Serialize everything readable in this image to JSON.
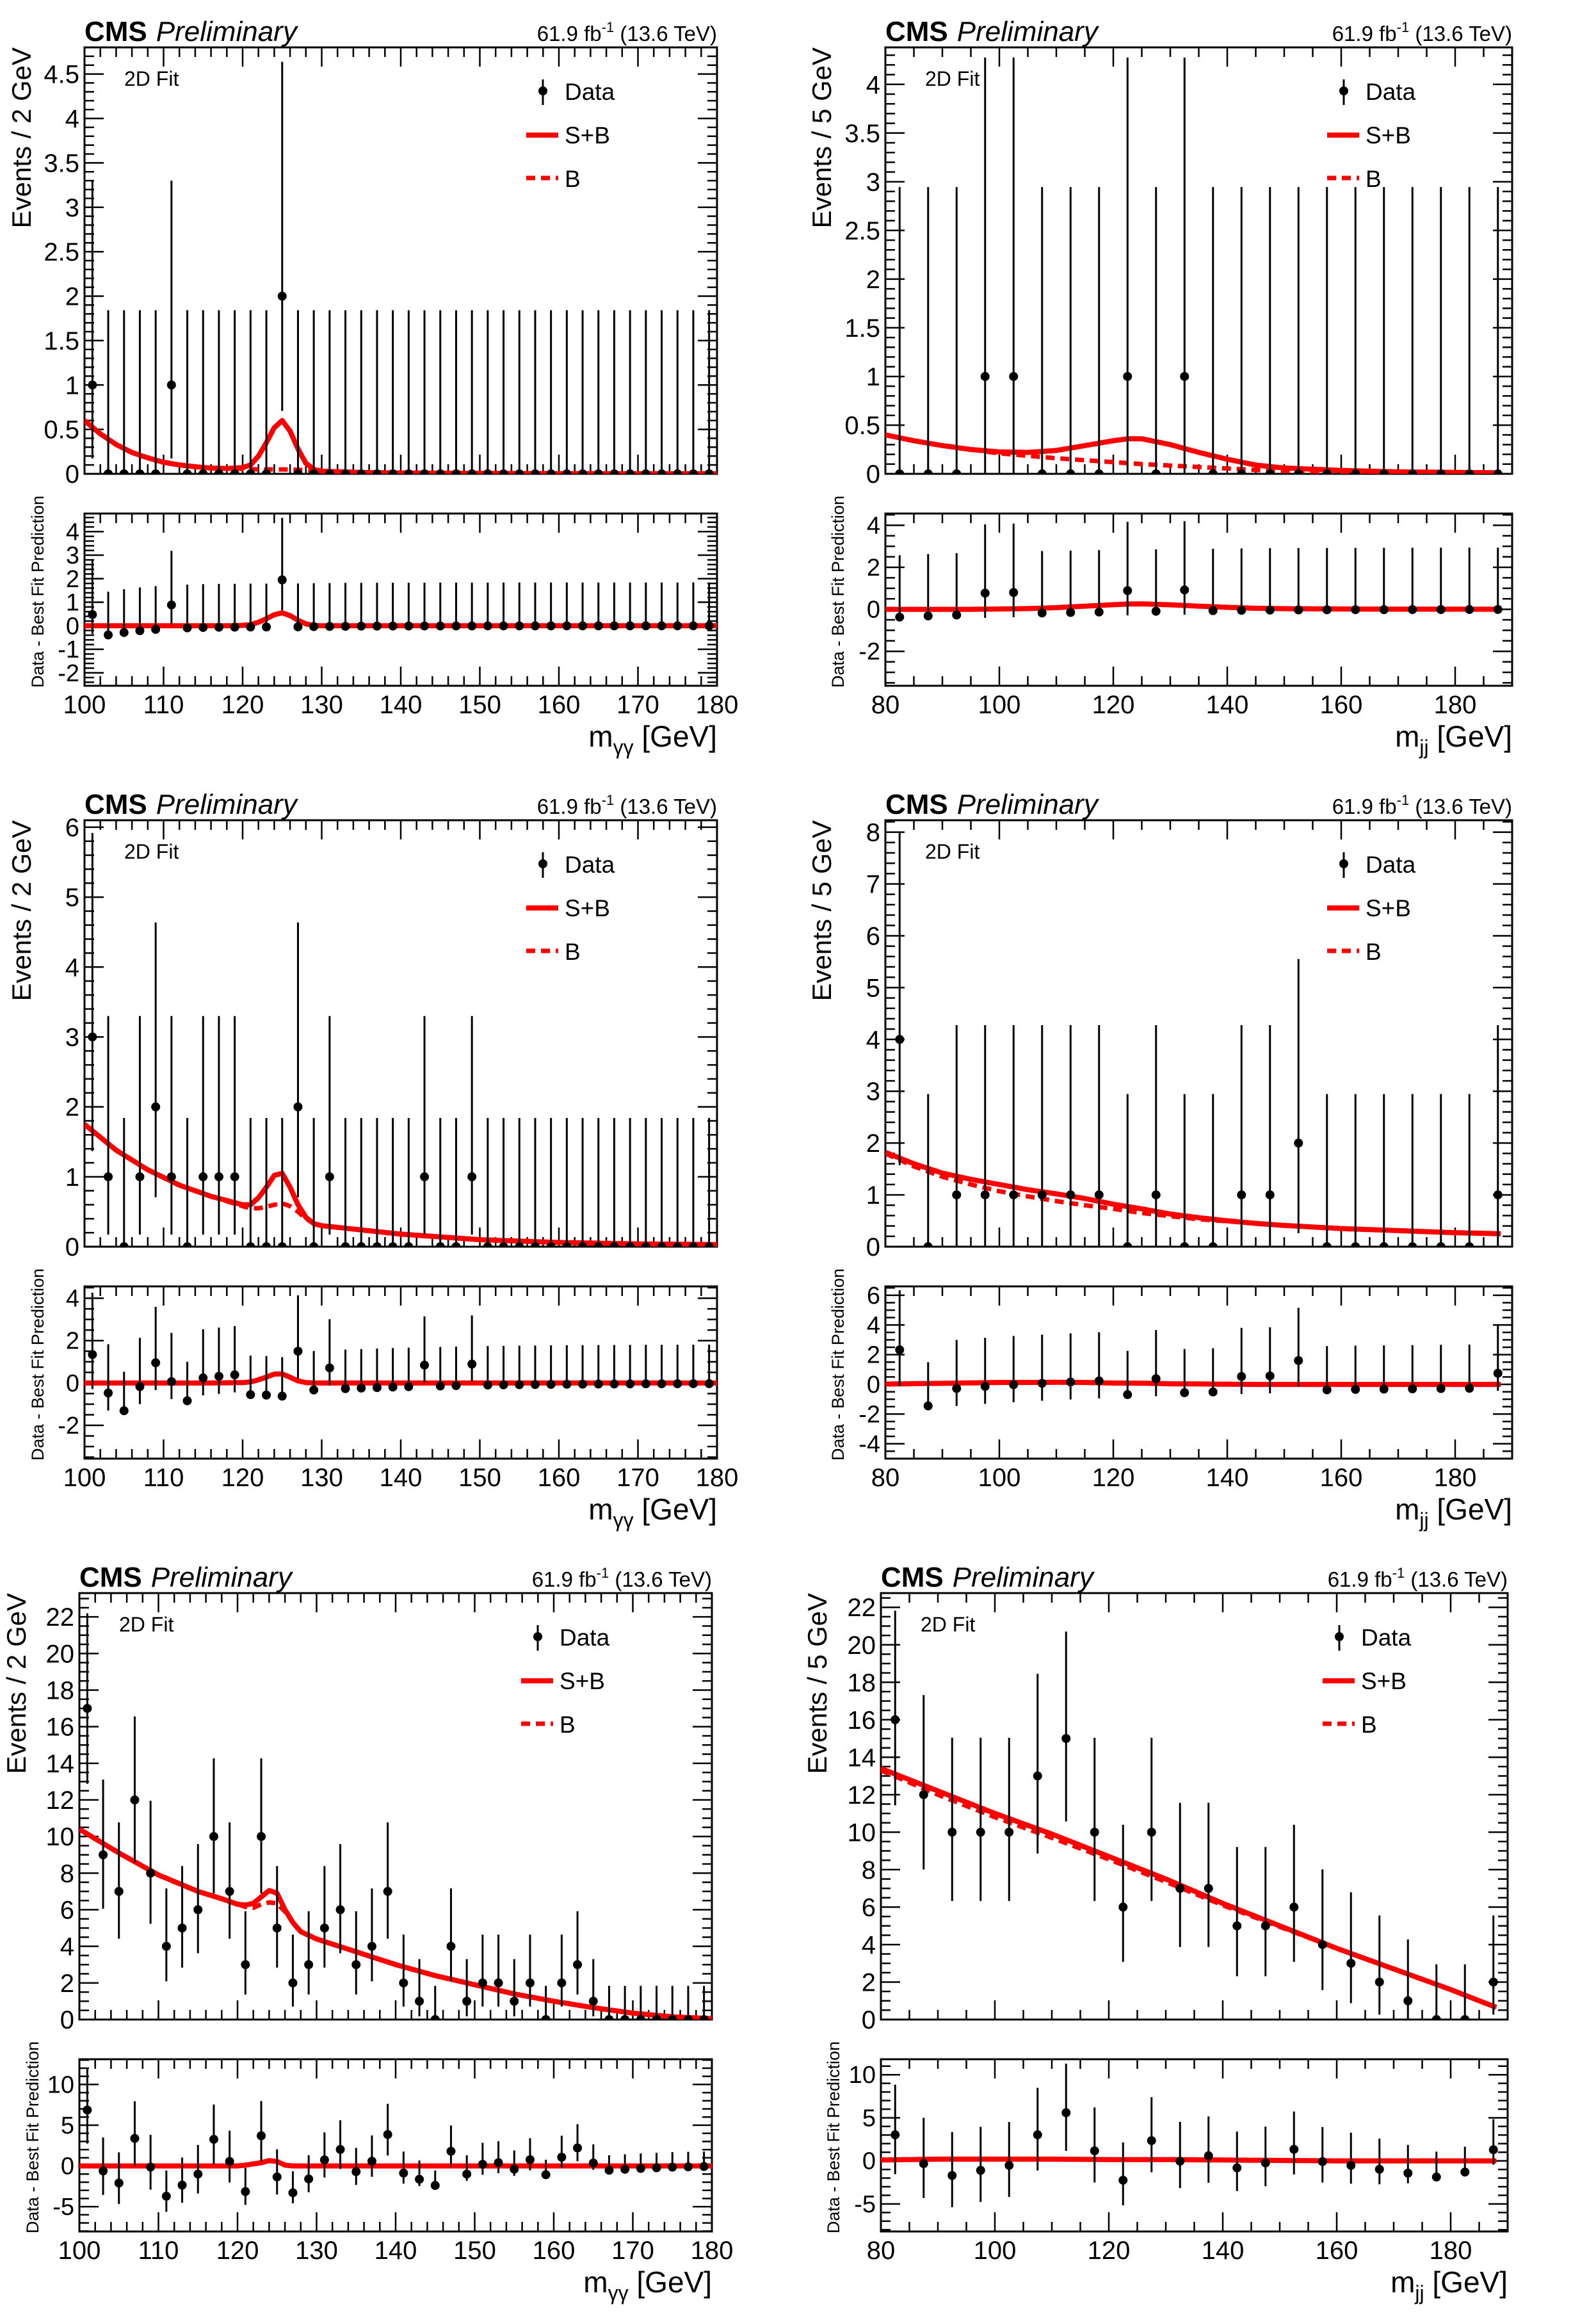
{
  "header": {
    "cms": "CMS",
    "preliminary": "Preliminary",
    "lumi": "61.9 fb",
    "lumi_exp": "-1",
    "energy": " (13.6 TeV)",
    "fit_label": "2D Fit"
  },
  "legend": [
    "Data",
    "S+B",
    "B"
  ],
  "ratio_ylabel": "Data - Best Fit Prediction",
  "colors": {
    "fit": "#ff0000",
    "data": "#000000"
  },
  "chart_data": [
    {
      "type": "scatter",
      "ylabel": "Events / 2 GeV",
      "xlabel": {
        "var": "m",
        "sub": "γγ",
        "unit": " [GeV]"
      },
      "xlim": [
        100,
        180
      ],
      "ylim": [
        0,
        4.8
      ],
      "ratio_ylim": [
        -2.55,
        4.77
      ],
      "xticks": [
        100,
        110,
        120,
        130,
        140,
        150,
        160,
        170,
        180
      ],
      "yticks": [
        0,
        0.5,
        1,
        1.5,
        2,
        2.5,
        3,
        3.5,
        4,
        4.5
      ],
      "ratio_yticks": [
        -2,
        -1,
        0,
        1,
        2,
        3,
        4
      ],
      "x": [
        101,
        103,
        105,
        107,
        109,
        111,
        113,
        115,
        117,
        119,
        121,
        123,
        125,
        127,
        129,
        131,
        133,
        135,
        137,
        139,
        141,
        143,
        145,
        147,
        149,
        151,
        153,
        155,
        157,
        159,
        161,
        163,
        165,
        167,
        169,
        171,
        173,
        175,
        177,
        179
      ],
      "values": [
        1,
        0,
        0,
        0,
        0,
        1,
        0,
        0,
        0,
        0,
        0,
        0,
        2,
        0,
        0,
        0,
        0,
        0,
        0,
        0,
        0,
        0,
        0,
        0,
        0,
        0,
        0,
        0,
        0,
        0,
        0,
        0,
        0,
        0,
        0,
        0,
        0,
        0,
        0,
        0
      ],
      "curve_x": [
        100,
        102,
        104,
        106,
        108,
        110,
        112,
        114,
        116,
        118,
        120,
        121,
        122,
        123,
        124,
        125,
        126,
        127,
        128,
        129,
        130,
        135,
        140,
        150,
        160,
        170,
        180
      ],
      "sb": [
        0.6,
        0.45,
        0.33,
        0.24,
        0.18,
        0.13,
        0.1,
        0.08,
        0.065,
        0.06,
        0.07,
        0.1,
        0.2,
        0.35,
        0.52,
        0.6,
        0.48,
        0.28,
        0.12,
        0.05,
        0.03,
        0.015,
        0.01,
        0.005,
        0.003,
        0.002,
        0.001
      ],
      "b": [
        0.6,
        0.45,
        0.33,
        0.24,
        0.18,
        0.13,
        0.1,
        0.08,
        0.065,
        0.06,
        0.055,
        0.052,
        0.05,
        0.05,
        0.05,
        0.05,
        0.048,
        0.045,
        0.04,
        0.035,
        0.03,
        0.015,
        0.01,
        0.005,
        0.003,
        0.002,
        0.001
      ]
    },
    {
      "type": "scatter",
      "ylabel": "Events / 5 GeV",
      "xlabel": {
        "var": "m",
        "sub": "jj",
        "unit": " [GeV]"
      },
      "xlim": [
        80,
        190
      ],
      "ylim": [
        0,
        4.38
      ],
      "ratio_ylim": [
        -3.64,
        4.56
      ],
      "xticks": [
        80,
        100,
        120,
        140,
        160,
        180
      ],
      "yticks": [
        0,
        0.5,
        1,
        1.5,
        2,
        2.5,
        3,
        3.5,
        4
      ],
      "ratio_yticks": [
        -2,
        0,
        2,
        4
      ],
      "x": [
        82.5,
        87.5,
        92.5,
        97.5,
        102.5,
        107.5,
        112.5,
        117.5,
        122.5,
        127.5,
        132.5,
        137.5,
        142.5,
        147.5,
        152.5,
        157.5,
        162.5,
        167.5,
        172.5,
        177.5,
        182.5,
        187.5
      ],
      "values": [
        0,
        0,
        0,
        1,
        1,
        0,
        0,
        0,
        1,
        0,
        1,
        0,
        0,
        0,
        0,
        0,
        0,
        0,
        0,
        0,
        0,
        0
      ],
      "curve_x": [
        80,
        85,
        90,
        95,
        100,
        105,
        110,
        115,
        120,
        122.5,
        125,
        130,
        135,
        140,
        145,
        150,
        160,
        170,
        180,
        188
      ],
      "sb": [
        0.4,
        0.34,
        0.29,
        0.25,
        0.225,
        0.22,
        0.24,
        0.29,
        0.34,
        0.36,
        0.36,
        0.3,
        0.22,
        0.15,
        0.09,
        0.06,
        0.035,
        0.02,
        0.015,
        0.01
      ],
      "b": [
        0.4,
        0.34,
        0.29,
        0.25,
        0.21,
        0.185,
        0.16,
        0.14,
        0.12,
        0.11,
        0.1,
        0.085,
        0.07,
        0.055,
        0.04,
        0.03,
        0.02,
        0.015,
        0.01,
        0.008
      ]
    },
    {
      "type": "scatter",
      "ylabel": "Events / 2 GeV",
      "xlabel": {
        "var": "m",
        "sub": "γγ",
        "unit": " [GeV]"
      },
      "xlim": [
        100,
        180
      ],
      "ylim": [
        0,
        6.1
      ],
      "ratio_ylim": [
        -3.57,
        4.56
      ],
      "xticks": [
        100,
        110,
        120,
        130,
        140,
        150,
        160,
        170,
        180
      ],
      "yticks": [
        0,
        1,
        2,
        3,
        4,
        5,
        6
      ],
      "ratio_yticks": [
        -2,
        0,
        2,
        4
      ],
      "x": [
        101,
        103,
        105,
        107,
        109,
        111,
        113,
        115,
        117,
        119,
        121,
        123,
        125,
        127,
        129,
        131,
        133,
        135,
        137,
        139,
        141,
        143,
        145,
        147,
        149,
        151,
        153,
        155,
        157,
        159,
        161,
        163,
        165,
        167,
        169,
        171,
        173,
        175,
        177,
        179
      ],
      "values": [
        3,
        1,
        0,
        1,
        2,
        1,
        0,
        1,
        1,
        1,
        0,
        0,
        0,
        2,
        0,
        1,
        0,
        0,
        0,
        0,
        0,
        1,
        0,
        0,
        1,
        0,
        0,
        0,
        0,
        0,
        0,
        0,
        0,
        0,
        0,
        0,
        0,
        0,
        0,
        0
      ],
      "curve_x": [
        100,
        104,
        108,
        112,
        116,
        120,
        121,
        122,
        123,
        124,
        125,
        126,
        127,
        128,
        129,
        130,
        135,
        140,
        150,
        160,
        170,
        180
      ],
      "sb": [
        1.75,
        1.38,
        1.1,
        0.88,
        0.72,
        0.6,
        0.6,
        0.7,
        0.85,
        1.02,
        1.05,
        0.85,
        0.6,
        0.42,
        0.33,
        0.3,
        0.24,
        0.18,
        0.1,
        0.06,
        0.04,
        0.03
      ],
      "b": [
        1.75,
        1.38,
        1.1,
        0.88,
        0.72,
        0.58,
        0.55,
        0.55,
        0.57,
        0.6,
        0.62,
        0.58,
        0.5,
        0.4,
        0.33,
        0.3,
        0.24,
        0.18,
        0.1,
        0.06,
        0.04,
        0.03
      ]
    },
    {
      "type": "scatter",
      "ylabel": "Events / 5 GeV",
      "xlabel": {
        "var": "m",
        "sub": "jj",
        "unit": " [GeV]"
      },
      "xlim": [
        80,
        190
      ],
      "ylim": [
        0,
        8.23
      ],
      "ratio_ylim": [
        -5.0,
        6.6
      ],
      "xticks": [
        80,
        100,
        120,
        140,
        160,
        180
      ],
      "yticks": [
        0,
        1,
        2,
        3,
        4,
        5,
        6,
        7,
        8
      ],
      "ratio_yticks": [
        -4,
        -2,
        0,
        2,
        4,
        6
      ],
      "x": [
        82.5,
        87.5,
        92.5,
        97.5,
        102.5,
        107.5,
        112.5,
        117.5,
        122.5,
        127.5,
        132.5,
        137.5,
        142.5,
        147.5,
        152.5,
        157.5,
        162.5,
        167.5,
        172.5,
        177.5,
        182.5,
        187.5
      ],
      "values": [
        4,
        0,
        1,
        1,
        1,
        1,
        1,
        1,
        0,
        1,
        0,
        0,
        1,
        1,
        2,
        0,
        0,
        0,
        0,
        0,
        0,
        1
      ],
      "curve_x": [
        80,
        85,
        90,
        95,
        100,
        105,
        110,
        115,
        120,
        125,
        130,
        135,
        140,
        145,
        150,
        160,
        170,
        180,
        188
      ],
      "sb": [
        1.82,
        1.6,
        1.42,
        1.3,
        1.2,
        1.1,
        1.02,
        0.93,
        0.82,
        0.73,
        0.63,
        0.56,
        0.5,
        0.45,
        0.41,
        0.35,
        0.31,
        0.27,
        0.25
      ],
      "b": [
        1.8,
        1.55,
        1.35,
        1.2,
        1.07,
        0.97,
        0.88,
        0.8,
        0.73,
        0.65,
        0.59,
        0.53,
        0.49,
        0.45,
        0.41,
        0.35,
        0.31,
        0.27,
        0.25
      ]
    },
    {
      "type": "scatter",
      "ylabel": "Events / 2 GeV",
      "xlabel": {
        "var": "m",
        "sub": "γγ",
        "unit": " [GeV]"
      },
      "xlim": [
        100,
        180
      ],
      "ylim": [
        0,
        23.3
      ],
      "ratio_ylim": [
        -8.05,
        13.1
      ],
      "xticks": [
        100,
        110,
        120,
        130,
        140,
        150,
        160,
        170,
        180
      ],
      "yticks": [
        0,
        2,
        4,
        6,
        8,
        10,
        12,
        14,
        16,
        18,
        20,
        22
      ],
      "ratio_yticks": [
        -5,
        0,
        5,
        10
      ],
      "x": [
        101,
        103,
        105,
        107,
        109,
        111,
        113,
        115,
        117,
        119,
        121,
        123,
        125,
        127,
        129,
        131,
        133,
        135,
        137,
        139,
        141,
        143,
        145,
        147,
        149,
        151,
        153,
        155,
        157,
        159,
        161,
        163,
        165,
        167,
        169,
        171,
        173,
        175,
        177,
        179
      ],
      "values": [
        17,
        9,
        7,
        12,
        8,
        4,
        5,
        6,
        10,
        7,
        3,
        10,
        5,
        2,
        3,
        5,
        6,
        3,
        4,
        7,
        2,
        1,
        0,
        4,
        1,
        2,
        2,
        1,
        2,
        0,
        2,
        3,
        1,
        0,
        0,
        0,
        0,
        0,
        0,
        0
      ],
      "curve_x": [
        100,
        105,
        110,
        115,
        118,
        120,
        121,
        122,
        123,
        124,
        125,
        126,
        127,
        128,
        130,
        135,
        140,
        145,
        150,
        155,
        160,
        165,
        170,
        175,
        180
      ],
      "sb": [
        10.4,
        9.1,
        7.9,
        7.0,
        6.6,
        6.3,
        6.25,
        6.35,
        6.7,
        7.05,
        6.9,
        6.0,
        5.3,
        4.8,
        4.4,
        3.7,
        3.0,
        2.4,
        1.9,
        1.4,
        1.0,
        0.65,
        0.35,
        0.15,
        0.05
      ],
      "b": [
        10.4,
        9.1,
        7.9,
        7.0,
        6.6,
        6.3,
        6.15,
        6.1,
        6.3,
        6.4,
        6.35,
        5.9,
        5.3,
        4.8,
        4.4,
        3.7,
        3.0,
        2.4,
        1.9,
        1.4,
        1.0,
        0.65,
        0.35,
        0.15,
        0.05
      ]
    },
    {
      "type": "scatter",
      "ylabel": "Events / 5 GeV",
      "xlabel": {
        "var": "m",
        "sub": "jj",
        "unit": " [GeV]"
      },
      "xlim": [
        80,
        190
      ],
      "ylim": [
        0,
        22.76
      ],
      "ratio_ylim": [
        -8.2,
        11.8
      ],
      "xticks": [
        80,
        100,
        120,
        140,
        160,
        180
      ],
      "yticks": [
        0,
        2,
        4,
        6,
        8,
        10,
        12,
        14,
        16,
        18,
        20,
        22
      ],
      "ratio_yticks": [
        -5,
        0,
        5,
        10
      ],
      "x": [
        82.5,
        87.5,
        92.5,
        97.5,
        102.5,
        107.5,
        112.5,
        117.5,
        122.5,
        127.5,
        132.5,
        137.5,
        142.5,
        147.5,
        152.5,
        157.5,
        162.5,
        167.5,
        172.5,
        177.5,
        182.5,
        187.5
      ],
      "values": [
        16,
        12,
        10,
        10,
        10,
        13,
        15,
        10,
        6,
        10,
        7,
        7,
        5,
        5,
        6,
        4,
        3,
        2,
        1,
        0,
        0,
        2
      ],
      "curve_x": [
        80,
        90,
        100,
        110,
        120,
        130,
        140,
        150,
        160,
        170,
        180,
        185,
        188
      ],
      "sb": [
        13.4,
        12.2,
        11.0,
        9.9,
        8.7,
        7.5,
        6.2,
        5.0,
        3.8,
        2.7,
        1.6,
        1.0,
        0.65
      ],
      "b": [
        13.3,
        12.0,
        10.8,
        9.7,
        8.55,
        7.35,
        6.1,
        4.95,
        3.8,
        2.7,
        1.6,
        1.0,
        0.65
      ]
    }
  ]
}
